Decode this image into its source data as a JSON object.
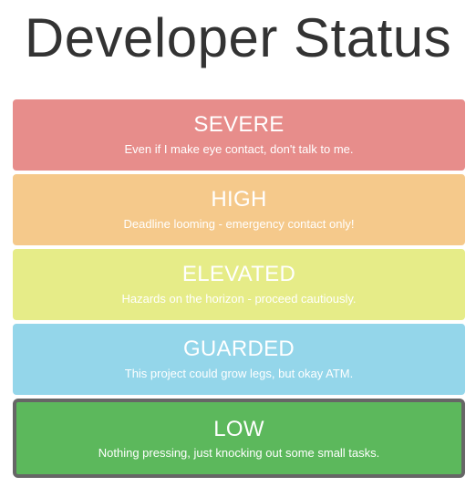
{
  "page": {
    "title": "Developer Status"
  },
  "levels": [
    {
      "name": "SEVERE",
      "description": "Even if I make eye contact, don't talk to me.",
      "color": "#e78d8b",
      "active": false
    },
    {
      "name": "HIGH",
      "description": "Deadline looming - emergency contact only!",
      "color": "#f5c98b",
      "active": false
    },
    {
      "name": "ELEVATED",
      "description": "Hazards on the horizon - proceed cautiously.",
      "color": "#e6ec88",
      "active": false
    },
    {
      "name": "GUARDED",
      "description": "This project could grow legs, but okay ATM.",
      "color": "#94d6ea",
      "active": false
    },
    {
      "name": "LOW",
      "description": "Nothing pressing, just knocking out some small tasks.",
      "color": "#5cb85c",
      "active": true
    }
  ]
}
